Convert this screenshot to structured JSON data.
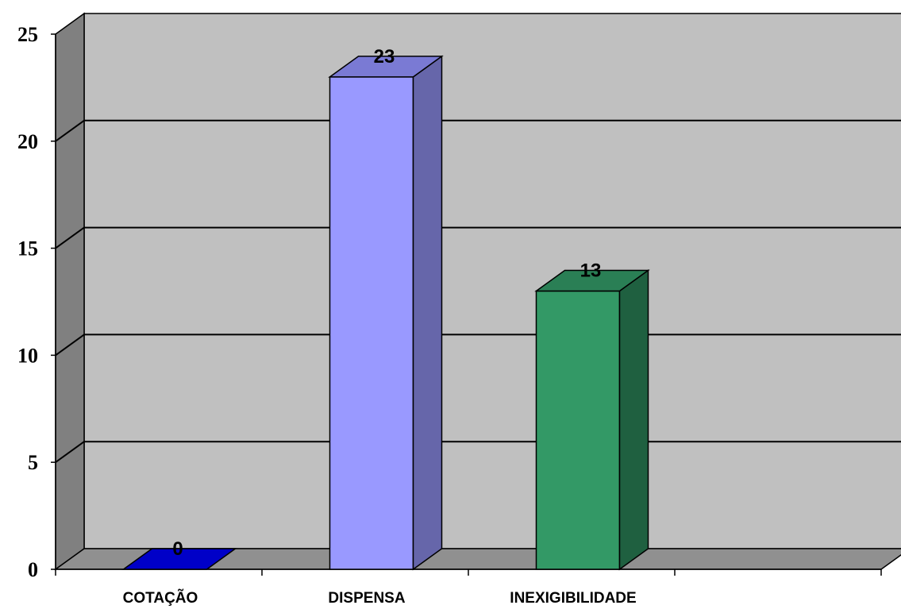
{
  "chart_data": {
    "type": "bar",
    "categories": [
      "COTAÇÃO",
      "DISPENSA",
      "INEXIGIBILIDADE",
      ""
    ],
    "values": [
      0,
      23,
      13,
      null
    ],
    "data_labels": [
      "0",
      "23",
      "13",
      ""
    ],
    "ylim": [
      0,
      25
    ],
    "yticks": [
      "0",
      "5",
      "10",
      "15",
      "20",
      "25"
    ],
    "grid": true,
    "style": "3d",
    "colors": {
      "wall": "#c0c0c0",
      "side_wall": "#808080",
      "floor": "#909090",
      "bars": [
        {
          "front": "#0000c0",
          "side": "#000080",
          "top": "#0000c8"
        },
        {
          "front": "#9999ff",
          "side": "#6666aa",
          "top": "#7a7ad4"
        },
        {
          "front": "#339966",
          "side": "#1f6040",
          "top": "#2a7f55"
        },
        {
          "front": "#cccccc",
          "side": "#999999",
          "top": "#bbbbbb"
        }
      ]
    }
  }
}
